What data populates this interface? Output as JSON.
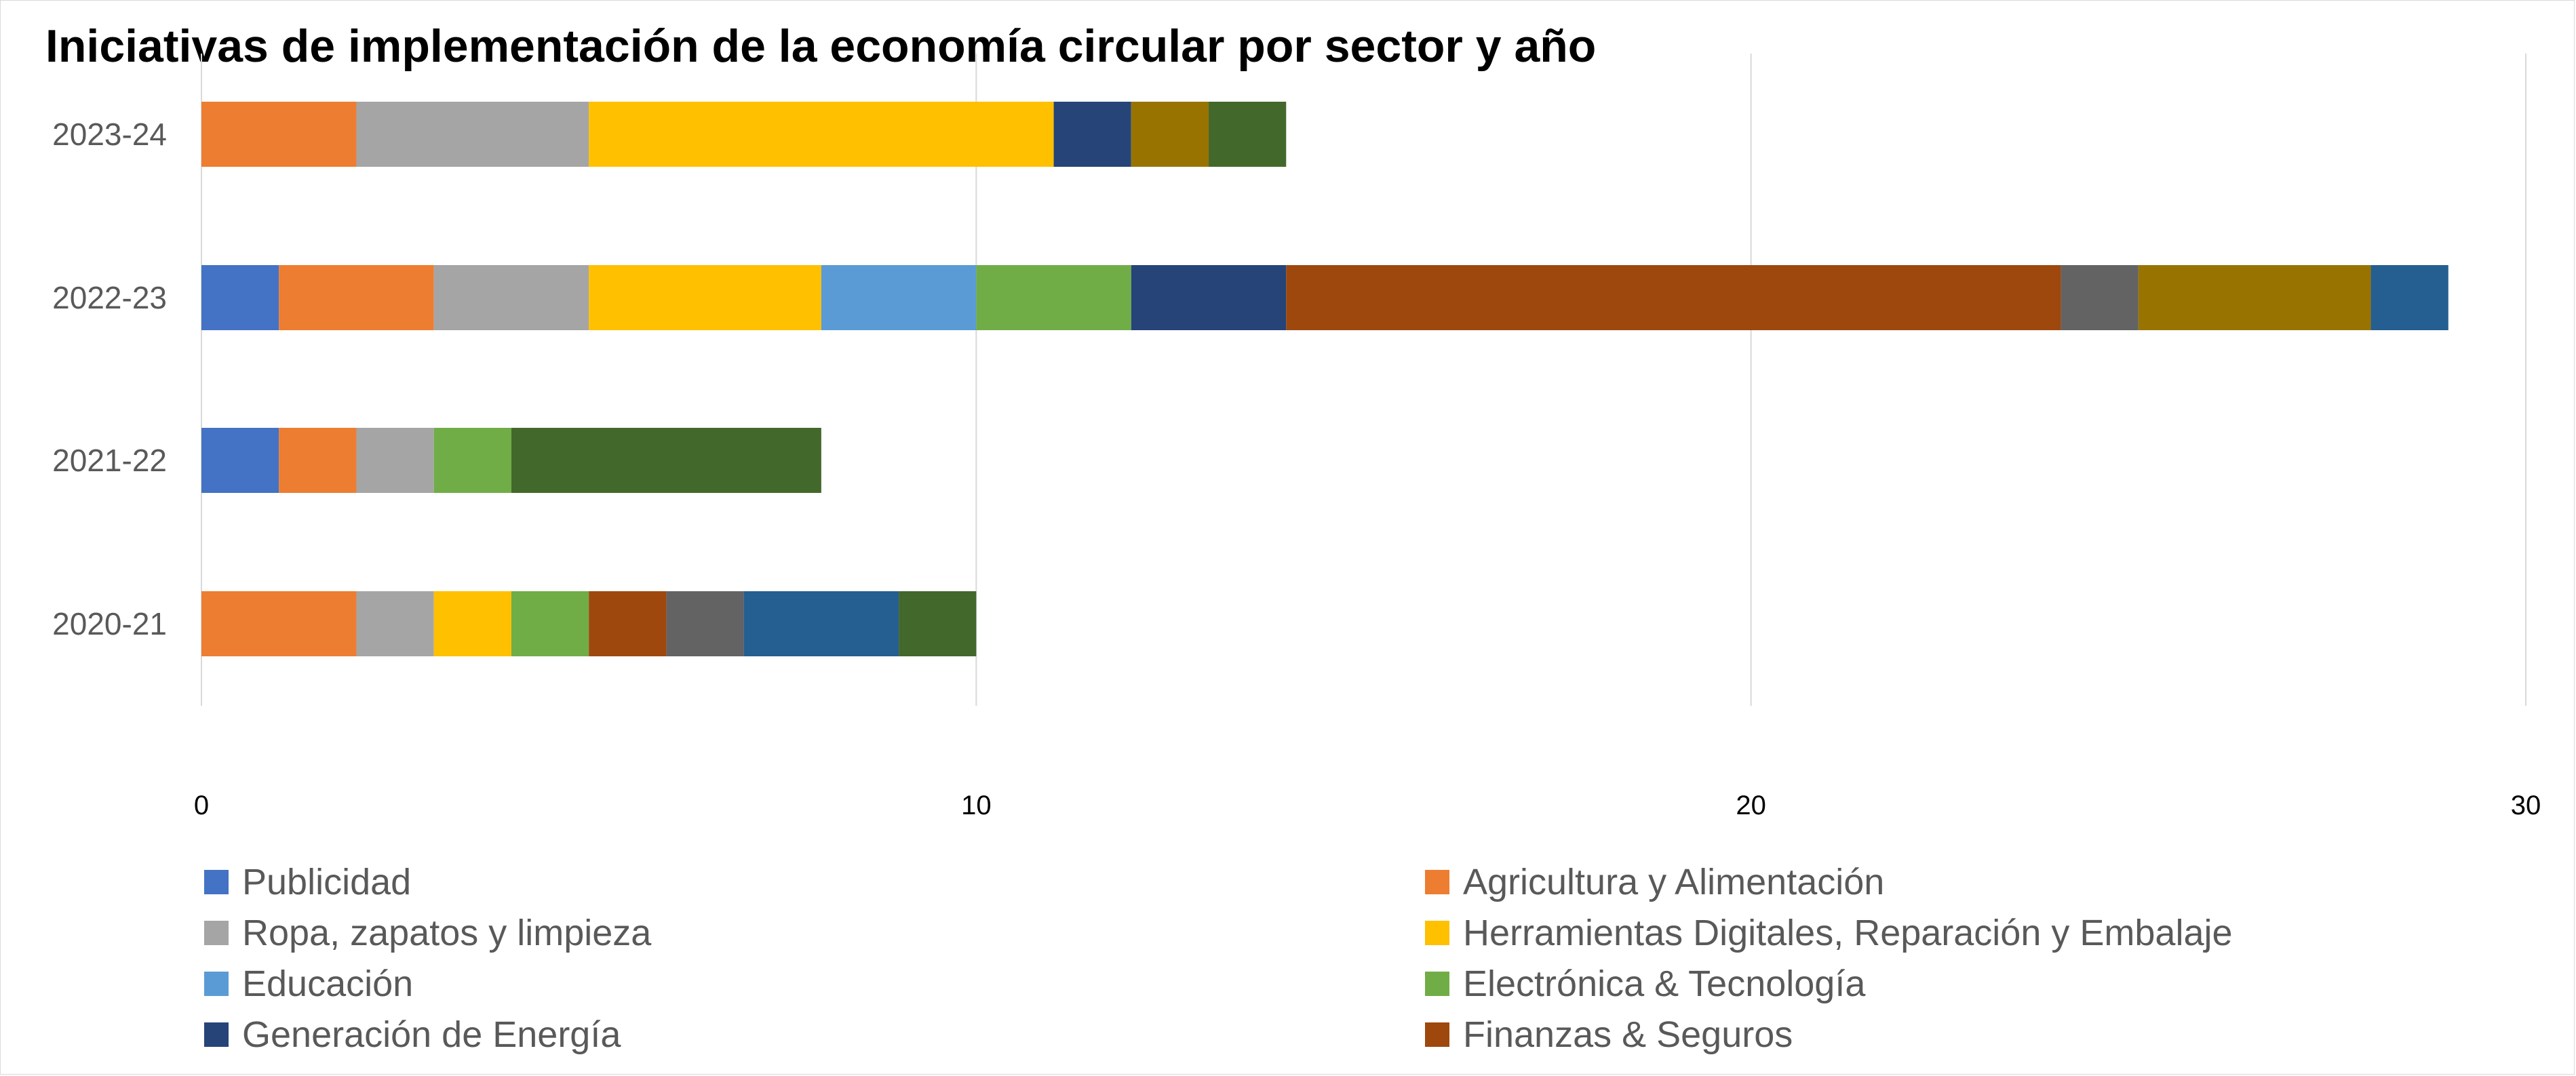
{
  "chart_data": {
    "type": "bar",
    "orientation": "horizontal",
    "stacked": true,
    "title": "Iniciativas de implementación de la economía circular por sector y año",
    "categories": [
      "2023-24",
      "2022-23",
      "2021-22",
      "2020-21"
    ],
    "xlim": [
      0,
      30
    ],
    "x_ticks": [
      0,
      10,
      20,
      30
    ],
    "grid": "vertical",
    "legend_position": "bottom",
    "segments": [
      {
        "category": "2023-24",
        "color": "#ED7D31",
        "value": 2
      },
      {
        "category": "2023-24",
        "color": "#A5A5A5",
        "value": 3
      },
      {
        "category": "2023-24",
        "color": "#FFC000",
        "value": 6
      },
      {
        "category": "2023-24",
        "color": "#264478",
        "value": 1
      },
      {
        "category": "2023-24",
        "color": "#997300",
        "value": 1
      },
      {
        "category": "2023-24",
        "color": "#43682B",
        "value": 1
      },
      {
        "category": "2022-23",
        "color": "#4472C4",
        "value": 1
      },
      {
        "category": "2022-23",
        "color": "#ED7D31",
        "value": 2
      },
      {
        "category": "2022-23",
        "color": "#A5A5A5",
        "value": 2
      },
      {
        "category": "2022-23",
        "color": "#FFC000",
        "value": 3
      },
      {
        "category": "2022-23",
        "color": "#5B9BD5",
        "value": 2
      },
      {
        "category": "2022-23",
        "color": "#70AD47",
        "value": 2
      },
      {
        "category": "2022-23",
        "color": "#264478",
        "value": 2
      },
      {
        "category": "2022-23",
        "color": "#9E480E",
        "value": 10
      },
      {
        "category": "2022-23",
        "color": "#636363",
        "value": 1
      },
      {
        "category": "2022-23",
        "color": "#997300",
        "value": 3
      },
      {
        "category": "2022-23",
        "color": "#255E91",
        "value": 1
      },
      {
        "category": "2021-22",
        "color": "#4472C4",
        "value": 1
      },
      {
        "category": "2021-22",
        "color": "#ED7D31",
        "value": 1
      },
      {
        "category": "2021-22",
        "color": "#A5A5A5",
        "value": 1
      },
      {
        "category": "2021-22",
        "color": "#70AD47",
        "value": 1
      },
      {
        "category": "2021-22",
        "color": "#43682B",
        "value": 4
      },
      {
        "category": "2020-21",
        "color": "#ED7D31",
        "value": 2
      },
      {
        "category": "2020-21",
        "color": "#A5A5A5",
        "value": 1
      },
      {
        "category": "2020-21",
        "color": "#FFC000",
        "value": 1
      },
      {
        "category": "2020-21",
        "color": "#70AD47",
        "value": 1
      },
      {
        "category": "2020-21",
        "color": "#9E480E",
        "value": 1
      },
      {
        "category": "2020-21",
        "color": "#636363",
        "value": 1
      },
      {
        "category": "2020-21",
        "color": "#255E91",
        "value": 2
      },
      {
        "category": "2020-21",
        "color": "#43682B",
        "value": 1
      }
    ],
    "legend": [
      {
        "label": "Publicidad",
        "color": "#4472C4"
      },
      {
        "label": "Agricultura y Alimentación",
        "color": "#ED7D31"
      },
      {
        "label": "Ropa, zapatos y limpieza",
        "color": "#A5A5A5"
      },
      {
        "label": "Herramientas Digitales, Reparación y Embalaje",
        "color": "#FFC000"
      },
      {
        "label": "Educación",
        "color": "#5B9BD5"
      },
      {
        "label": "Electrónica & Tecnología",
        "color": "#70AD47"
      },
      {
        "label": "Generación de Energía",
        "color": "#264478"
      },
      {
        "label": "Finanzas & Seguros",
        "color": "#9E480E"
      }
    ]
  }
}
